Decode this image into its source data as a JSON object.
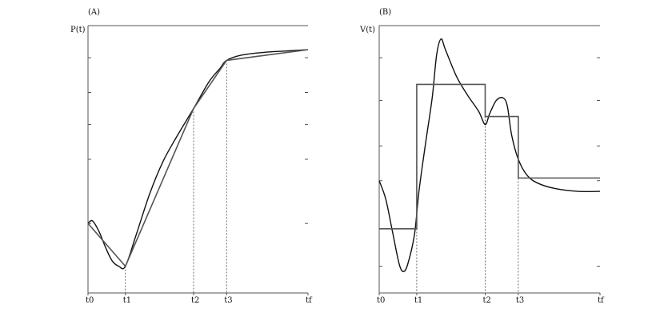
{
  "chart_data": [
    {
      "type": "line",
      "panel_label": "(A)",
      "ylabel": "P(t)",
      "xlim": [
        0,
        100
      ],
      "ylim": [
        0,
        100
      ],
      "x_ticks": [
        {
          "label": "t0",
          "x": 0
        },
        {
          "label": "t1",
          "x": 17
        },
        {
          "label": "t2",
          "x": 48
        },
        {
          "label": "t3",
          "x": 63
        },
        {
          "label": "tf",
          "x": 100
        }
      ],
      "guide_lines": [
        {
          "x": 17,
          "y": 10
        },
        {
          "x": 48,
          "y": 69
        },
        {
          "x": 63,
          "y": 87
        }
      ],
      "series": [
        {
          "role": "curve",
          "points": [
            [
              0,
              26
            ],
            [
              2,
              27
            ],
            [
              5,
              23
            ],
            [
              8,
              17
            ],
            [
              11,
              12
            ],
            [
              14,
              10
            ],
            [
              17,
              10
            ],
            [
              22,
              22
            ],
            [
              28,
              37
            ],
            [
              34,
              49
            ],
            [
              40,
              58
            ],
            [
              48,
              69
            ],
            [
              55,
              79
            ],
            [
              60,
              84
            ],
            [
              63,
              87
            ],
            [
              70,
              89
            ],
            [
              80,
              90
            ],
            [
              90,
              90.5
            ],
            [
              100,
              91
            ]
          ]
        },
        {
          "role": "piecewise-linear",
          "points": [
            [
              0,
              26
            ],
            [
              17,
              10
            ],
            [
              48,
              69
            ],
            [
              63,
              87
            ],
            [
              100,
              91
            ]
          ]
        }
      ]
    },
    {
      "type": "line",
      "panel_label": "(B)",
      "ylabel": "V(t)",
      "xlim": [
        0,
        100
      ],
      "ylim": [
        0,
        100
      ],
      "x_ticks": [
        {
          "label": "t0",
          "x": 0
        },
        {
          "label": "t1",
          "x": 17
        },
        {
          "label": "t2",
          "x": 48
        },
        {
          "label": "t3",
          "x": 63
        },
        {
          "label": "tf",
          "x": 100
        }
      ],
      "guide_lines": [
        {
          "x": 17,
          "y": 78
        },
        {
          "x": 48,
          "y": 66
        },
        {
          "x": 63,
          "y": 43
        }
      ],
      "series": [
        {
          "role": "curve",
          "points": [
            [
              0,
              42
            ],
            [
              3,
              35
            ],
            [
              6,
              23
            ],
            [
              9,
              11
            ],
            [
              11,
              8
            ],
            [
              13,
              11
            ],
            [
              16,
              22
            ],
            [
              18,
              38
            ],
            [
              21,
              56
            ],
            [
              24,
              73
            ],
            [
              26,
              89
            ],
            [
              28,
              95
            ],
            [
              30,
              91
            ],
            [
              35,
              81
            ],
            [
              40,
              74
            ],
            [
              45,
              68
            ],
            [
              48,
              63
            ],
            [
              50,
              67
            ],
            [
              53,
              72
            ],
            [
              56,
              73
            ],
            [
              58,
              70
            ],
            [
              60,
              59
            ],
            [
              63,
              50
            ],
            [
              67,
              44
            ],
            [
              72,
              41
            ],
            [
              80,
              39
            ],
            [
              90,
              38
            ],
            [
              100,
              38
            ]
          ]
        },
        {
          "role": "piecewise-constant",
          "points": [
            [
              0,
              24
            ],
            [
              17,
              24
            ],
            [
              17,
              78
            ],
            [
              48,
              78
            ],
            [
              48,
              66
            ],
            [
              63,
              66
            ],
            [
              63,
              43
            ],
            [
              100,
              43
            ]
          ]
        }
      ]
    }
  ]
}
